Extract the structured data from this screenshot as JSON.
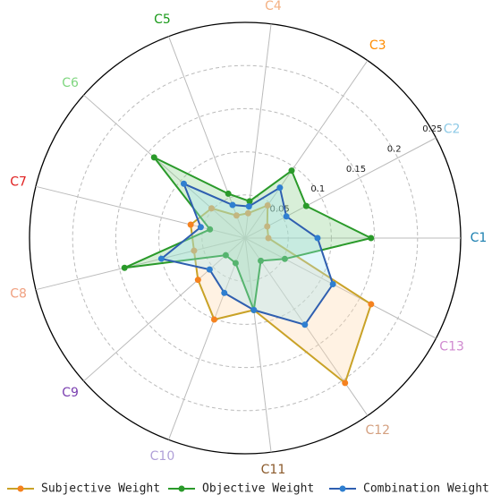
{
  "chart_data": {
    "type": "radar",
    "categories": [
      "C1",
      "C2",
      "C3",
      "C4",
      "C5",
      "C6",
      "C7",
      "C8",
      "C9",
      "C10",
      "C11",
      "C12",
      "C13"
    ],
    "category_colors": [
      "#1a7fb0",
      "#8ecae6",
      "#ff8c00",
      "#f4b183",
      "#1a9a1a",
      "#7fd67f",
      "#e02020",
      "#f0a080",
      "#7a3fb0",
      "#b0a0d8",
      "#8b5a2b",
      "#d4a080",
      "#d08ad0"
    ],
    "rlim": [
      0,
      0.25
    ],
    "rticks": [
      0.05,
      0.1,
      0.15,
      0.2,
      0.25
    ],
    "series": [
      {
        "name": "Subjective Weight",
        "color": "#c9a227",
        "marker_color": "#f5821f",
        "fill": "#ffd9b0",
        "values": [
          0.027,
          0.029,
          0.046,
          0.029,
          0.028,
          0.052,
          0.065,
          0.061,
          0.073,
          0.101,
          0.084,
          0.204,
          0.165
        ]
      },
      {
        "name": "Objective Weight",
        "color": "#2a9a2a",
        "marker_color": "#2a9a2a",
        "fill": "#8fd08f",
        "values": [
          0.146,
          0.08,
          0.095,
          0.043,
          0.055,
          0.141,
          0.042,
          0.144,
          0.03,
          0.031,
          0.084,
          0.032,
          0.052
        ]
      },
      {
        "name": "Combination Weight",
        "color": "#2f5fb0",
        "marker_color": "#2f7fd0",
        "fill": "#a8e4f0",
        "values": [
          0.084,
          0.054,
          0.071,
          0.037,
          0.041,
          0.095,
          0.053,
          0.1,
          0.055,
          0.068,
          0.084,
          0.122,
          0.115
        ]
      }
    ]
  }
}
